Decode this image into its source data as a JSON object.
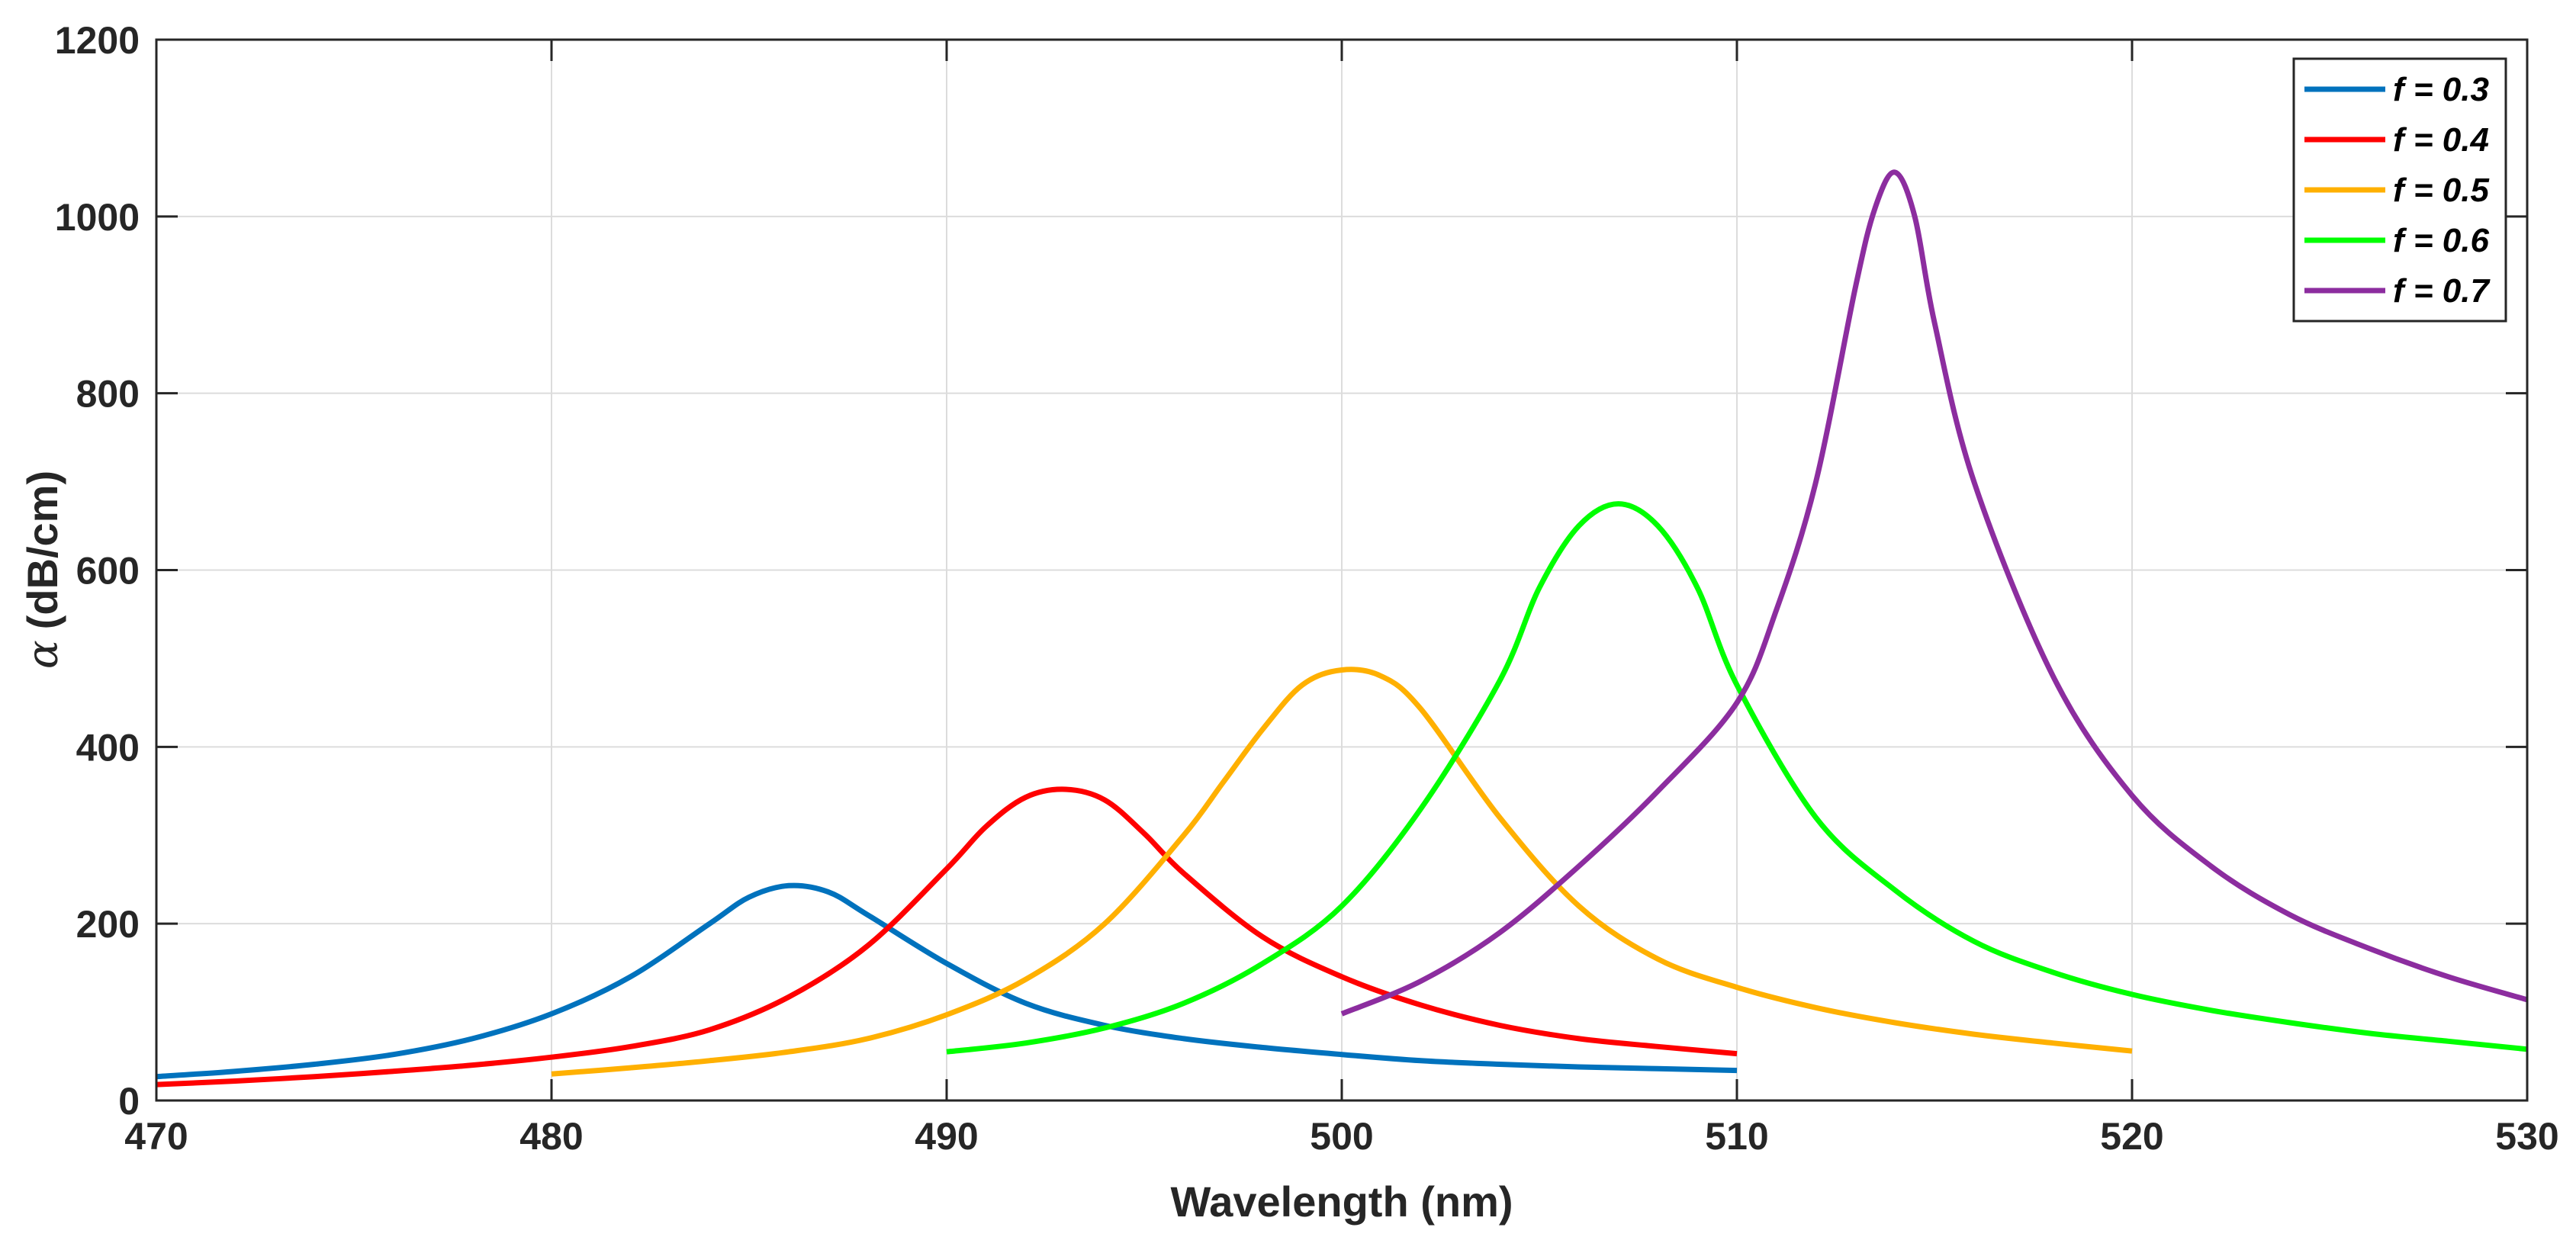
{
  "chart_data": {
    "type": "line",
    "title": "",
    "xlabel": "Wavelength (nm)",
    "ylabel_symbol": "α",
    "ylabel": "(dB/cm)",
    "xlim": [
      470,
      530
    ],
    "ylim": [
      0,
      1200
    ],
    "xticks": [
      470,
      480,
      490,
      500,
      510,
      520,
      530
    ],
    "yticks": [
      0,
      200,
      400,
      600,
      800,
      1000,
      1200
    ],
    "grid": true,
    "legend_position": "top-right",
    "series": [
      {
        "name": "f = 0.3",
        "color": "#0072BD",
        "x": [
          470,
          472,
          474,
          476,
          478,
          480,
          482,
          484,
          485,
          486,
          487,
          488,
          490,
          492,
          494,
          496,
          498,
          500,
          502,
          504,
          506,
          508,
          510
        ],
        "values": [
          27,
          33,
          41,
          52,
          70,
          98,
          140,
          200,
          230,
          243,
          236,
          210,
          155,
          110,
          85,
          70,
          60,
          52,
          45,
          41,
          38,
          36,
          34
        ]
      },
      {
        "name": "f = 0.4",
        "color": "#FF0000",
        "x": [
          470,
          472,
          474,
          476,
          478,
          480,
          482,
          484,
          486,
          488,
          490,
          491,
          492,
          493,
          494,
          495,
          496,
          498,
          500,
          502,
          504,
          506,
          508,
          510
        ],
        "values": [
          18,
          22,
          27,
          33,
          40,
          49,
          61,
          80,
          117,
          175,
          262,
          310,
          343,
          352,
          340,
          302,
          257,
          185,
          140,
          108,
          85,
          70,
          61,
          53
        ]
      },
      {
        "name": "f = 0.5",
        "color": "#FFB000",
        "x": [
          480,
          482,
          484,
          486,
          488,
          490,
          492,
          494,
          496,
          497,
          498,
          499,
          500,
          501,
          502,
          504,
          506,
          508,
          510,
          512,
          514,
          516,
          518,
          520
        ],
        "values": [
          30,
          37,
          45,
          55,
          70,
          97,
          137,
          200,
          300,
          360,
          420,
          470,
          487,
          480,
          443,
          320,
          220,
          160,
          128,
          105,
          88,
          75,
          65,
          56
        ]
      },
      {
        "name": "f = 0.6",
        "color": "#00FF00",
        "x": [
          490,
          492,
          494,
          496,
          498,
          500,
          502,
          504,
          505,
          506,
          507,
          508,
          509,
          510,
          512,
          514,
          516,
          518,
          520,
          522,
          524,
          526,
          528,
          530
        ],
        "values": [
          55,
          65,
          82,
          110,
          155,
          220,
          330,
          475,
          580,
          650,
          675,
          650,
          580,
          470,
          320,
          238,
          180,
          145,
          120,
          102,
          88,
          76,
          67,
          58
        ]
      },
      {
        "name": "f = 0.7",
        "color": "#8C2D9F",
        "x": [
          500,
          502,
          504,
          506,
          508,
          510,
          511,
          512,
          513,
          513.5,
          514,
          514.5,
          515,
          516,
          518,
          520,
          522,
          524,
          526,
          528,
          530
        ],
        "values": [
          98,
          135,
          190,
          265,
          350,
          450,
          555,
          700,
          920,
          1010,
          1050,
          1000,
          880,
          700,
          480,
          345,
          265,
          210,
          172,
          140,
          114
        ]
      }
    ]
  }
}
